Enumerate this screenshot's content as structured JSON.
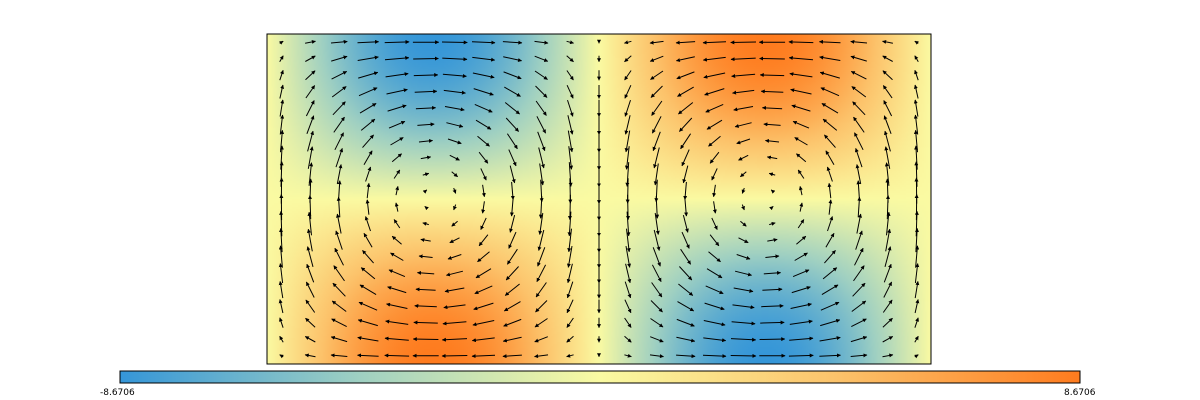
{
  "chart_data": {
    "type": "heatmap",
    "description_kind": "vector-field",
    "title": "",
    "xlabel": "",
    "ylabel": "",
    "colorbar": {
      "min_label": "-8.6706",
      "max_label": "8.6706",
      "range": [
        -8.6706,
        8.6706
      ],
      "stops": [
        "#3596d8",
        "#9fd0c2",
        "#fafaa2",
        "#fcc26a",
        "#fe7b1e"
      ],
      "placement": "bottom"
    },
    "field": {
      "cells_x": 2,
      "arrow_grid": [
        23,
        20
      ],
      "circulation": [
        "clockwise",
        "counterclockwise"
      ],
      "scalar_min": -8.6706,
      "scalar_max": 8.6706
    },
    "grid": false
  }
}
